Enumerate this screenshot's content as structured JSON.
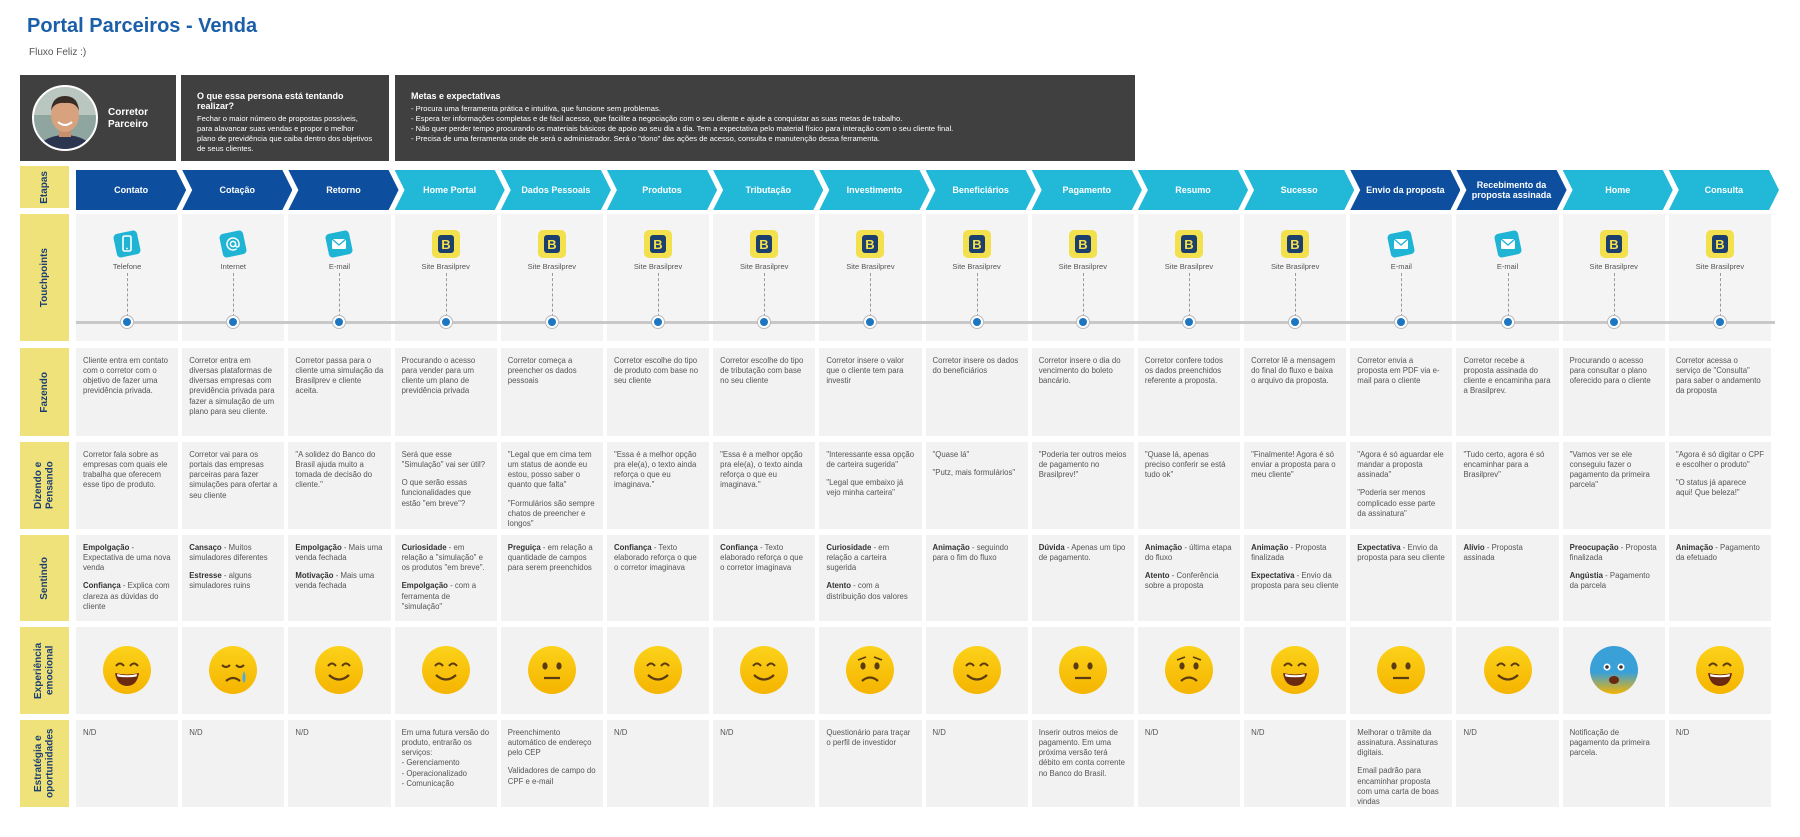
{
  "header": {
    "title": "Portal Parceiros - Venda",
    "subtitle": "Fluxo Feliz :)"
  },
  "persona": {
    "name": "Corretor Parceiro"
  },
  "goal": {
    "title": "O que essa persona está tentando realizar?",
    "text": "Fechar o maior número de propostas possíveis, para alavancar suas vendas e propor o melhor plano de previdência que caiba dentro dos objetivos de seus clientes."
  },
  "expectations": {
    "title": "Metas e expectativas",
    "items": [
      "- Procura uma ferramenta prática e intuitiva, que funcione sem problemas.",
      "- Espera ter informações completas e de fácil acesso, que facilite a negociação com o seu cliente e ajude a conquistar as suas metas de trabalho.",
      "- Não quer perder tempo procurando os materiais básicos de apoio ao seu dia a dia. Tem a expectativa pelo material físico para interação com o seu cliente final.",
      "- Precisa de uma ferramenta onde ele será o administrador. Será o \"dono\" das ações de acesso, consulta e manutenção dessa ferramenta."
    ]
  },
  "row_labels": [
    "Etapas",
    "Touchpoints",
    "Fazendo",
    "Dizendo e Pensando",
    "Sentindo",
    "Experiência emocional",
    "Estratégia e oportunidades"
  ],
  "journey": [
    {
      "stage": "Contato",
      "color": "#0d4f9e",
      "touchpoint": "Telefone",
      "doing": "Cliente entra em contato com o corretor com o objetivo de fazer uma previdência privada.",
      "saying": [
        "Corretor fala sobre as empresas com quais ele trabalha que oferecem esse tipo de produto."
      ],
      "feeling": [
        {
          "label": "Empolgação",
          "text": "- Expectativa de uma nova venda"
        },
        {
          "label": "Confiança",
          "text": "- Explica com clareza as dúvidas do cliente"
        }
      ],
      "strategy": [
        "N/D"
      ]
    },
    {
      "stage": "Cotação",
      "color": "#0d4f9e",
      "touchpoint": "Internet",
      "doing": "Corretor entra em diversas plataformas de diversas empresas com previdência privada para fazer a simulação de um plano para seu cliente.",
      "saying": [
        "Corretor vai para os portais das empresas parceiras para fazer simulações para ofertar a seu cliente"
      ],
      "feeling": [
        {
          "label": "Cansaço",
          "text": "- Muitos simuladores diferentes"
        },
        {
          "label": "Estresse",
          "text": "- alguns simuladores ruins"
        }
      ],
      "strategy": [
        "N/D"
      ]
    },
    {
      "stage": "Retorno",
      "color": "#0d4f9e",
      "touchpoint": "E-mail",
      "doing": "Corretor passa para o cliente uma simulação da Brasilprev e cliente aceita.",
      "saying": [
        "\"A solidez do Banco do Brasil ajuda muito a tomada de decisão do cliente.\""
      ],
      "feeling": [
        {
          "label": "Empolgação",
          "text": "- Mais uma venda fechada"
        },
        {
          "label": "Motivação",
          "text": "- Mais uma venda fechada"
        }
      ],
      "strategy": [
        "N/D"
      ]
    },
    {
      "stage": "Home Portal",
      "color": "#22b8d8",
      "touchpoint": "Site Brasilprev",
      "doing": "Procurando o acesso para vender para um cliente um plano de previdência privada",
      "saying": [
        "Será que esse \"Simulação\" vai ser útil?",
        "O que serão essas funcionalidades que estão \"em breve\"?"
      ],
      "feeling": [
        {
          "label": "Curiosidade",
          "text": "- em relação a \"simulação\" e os produtos \"em breve\"."
        },
        {
          "label": "Empolgação",
          "text": "- com a ferramenta de \"simulação\""
        }
      ],
      "strategy": [
        "Em uma futura versão do produto, entrarão os serviços:\n- Gerenciamento\n- Operacionalizado\n- Comunicação"
      ]
    },
    {
      "stage": "Dados Pessoais",
      "color": "#22b8d8",
      "touchpoint": "Site Brasilprev",
      "doing": "Corretor começa a preencher os dados pessoais",
      "saying": [
        "\"Legal que em cima tem um status de aonde eu estou, posso saber o quanto que falta\"",
        "\"Formulários são sempre chatos de preencher e longos\""
      ],
      "feeling": [
        {
          "label": "Preguiça",
          "text": "- em relação a quantidade de campos para serem preenchidos"
        }
      ],
      "strategy": [
        "Preenchimento automático de endereço pelo CEP",
        "Validadores de campo do CPF e e-mail"
      ]
    },
    {
      "stage": "Produtos",
      "color": "#22b8d8",
      "touchpoint": "Site Brasilprev",
      "doing": "Corretor escolhe do tipo de produto com base no seu cliente",
      "saying": [
        "\"Essa é a melhor opção pra ele(a), o texto ainda reforça o que eu imaginava.\""
      ],
      "feeling": [
        {
          "label": "Confiança",
          "text": "- Texto elaborado reforça o que o corretor imaginava"
        }
      ],
      "strategy": [
        "N/D"
      ]
    },
    {
      "stage": "Tributação",
      "color": "#22b8d8",
      "touchpoint": "Site Brasilprev",
      "doing": "Corretor escolhe do tipo de tributação com base no seu cliente",
      "saying": [
        "\"Essa é a melhor opção pra ele(a), o texto ainda reforça o que eu imaginava.\""
      ],
      "feeling": [
        {
          "label": "Confiança",
          "text": "- Texto elaborado reforça o que o corretor imaginava"
        }
      ],
      "strategy": [
        "N/D"
      ]
    },
    {
      "stage": "Investimento",
      "color": "#22b8d8",
      "touchpoint": "Site Brasilprev",
      "doing": "Corretor insere o valor que o cliente tem para investir",
      "saying": [
        "\"Interessante essa opção de carteira sugerida\"",
        "\"Legal que embaixo já vejo minha carteira\""
      ],
      "feeling": [
        {
          "label": "Curiosidade",
          "text": "- em relação a carteira sugerida"
        },
        {
          "label": "Atento",
          "text": "- com a distribuição dos valores"
        }
      ],
      "strategy": [
        "Questionário para traçar o perfil de investidor"
      ]
    },
    {
      "stage": "Beneficiários",
      "color": "#22b8d8",
      "touchpoint": "Site Brasilprev",
      "doing": "Corretor insere os dados do beneficiários",
      "saying": [
        "\"Quase lá\"",
        "\"Putz, mais formulários\""
      ],
      "feeling": [
        {
          "label": "Animação",
          "text": "- seguindo para o fim do fluxo"
        }
      ],
      "strategy": [
        "N/D"
      ]
    },
    {
      "stage": "Pagamento",
      "color": "#22b8d8",
      "touchpoint": "Site Brasilprev",
      "doing": "Corretor insere o dia do vencimento do boleto bancário.",
      "saying": [
        "\"Poderia ter outros meios de pagamento no Brasilprev!\""
      ],
      "feeling": [
        {
          "label": "Dúvida",
          "text": "- Apenas um tipo de pagamento."
        }
      ],
      "strategy": [
        "Inserir outros meios de pagamento. Em uma próxima versão terá débito em conta corrente no Banco do Brasil."
      ]
    },
    {
      "stage": "Resumo",
      "color": "#22b8d8",
      "touchpoint": "Site Brasilprev",
      "doing": "Corretor confere todos os dados preenchidos referente a proposta.",
      "saying": [
        "\"Quase lá, apenas preciso conferir se está tudo ok\""
      ],
      "feeling": [
        {
          "label": "Animação",
          "text": "- última etapa do fluxo"
        },
        {
          "label": "Atento",
          "text": "- Conferência sobre a proposta"
        }
      ],
      "strategy": [
        "N/D"
      ]
    },
    {
      "stage": "Sucesso",
      "color": "#22b8d8",
      "touchpoint": "Site Brasilprev",
      "doing": "Corretor lê a mensagem do final do fluxo e baixa o arquivo da proposta.",
      "saying": [
        "\"Finalmente! Agora é só enviar a proposta para o meu cliente\""
      ],
      "feeling": [
        {
          "label": "Animação",
          "text": "- Proposta finalizada"
        },
        {
          "label": "Expectativa",
          "text": "- Envio da proposta para seu cliente"
        }
      ],
      "strategy": [
        "N/D"
      ]
    },
    {
      "stage": "Envio da proposta",
      "color": "#0d4f9e",
      "touchpoint": "E-mail",
      "doing": "Corretor envia a proposta em PDF via e-mail para o cliente",
      "saying": [
        "\"Agora é só aguardar ele mandar a proposta assinada\"",
        "\"Poderia ser menos complicado esse parte da assinatura\""
      ],
      "feeling": [
        {
          "label": "Expectativa",
          "text": "- Envio da proposta para seu cliente"
        }
      ],
      "strategy": [
        "Melhorar o trâmite da assinatura. Assinaturas digitais.",
        "Email padrão para encaminhar proposta com uma carta de boas vindas"
      ]
    },
    {
      "stage": "Recebimento da proposta assinada",
      "color": "#0d4f9e",
      "touchpoint": "E-mail",
      "doing": "Corretor recebe a proposta assinada do cliente e encaminha para a Brasilprev.",
      "saying": [
        "\"Tudo certo, agora é só encaminhar para a Brasilprev\""
      ],
      "feeling": [
        {
          "label": "Alívio",
          "text": "- Proposta assinada"
        }
      ],
      "strategy": [
        "N/D"
      ]
    },
    {
      "stage": "Home",
      "color": "#22b8d8",
      "touchpoint": "Site Brasilprev",
      "doing": "Procurando o acesso para consultar o plano oferecido para o cliente",
      "saying": [
        "\"Vamos ver se ele conseguiu fazer o pagamento da primeira parcela\""
      ],
      "feeling": [
        {
          "label": "Preocupação",
          "text": "- Proposta finalizada"
        },
        {
          "label": "Angústia",
          "text": "- Pagamento da parcela"
        }
      ],
      "strategy": [
        "Notificação de pagamento da primeira parcela."
      ]
    },
    {
      "stage": "Consulta",
      "color": "#22b8d8",
      "touchpoint": "Site Brasilprev",
      "doing": "Corretor acessa o serviço de \"Consulta\" para saber o andamento da proposta",
      "saying": [
        "\"Agora é só digitar o CPF e escolher o produto\"",
        "\"O status já aparece aqui! Que beleza!\""
      ],
      "feeling": [
        {
          "label": "Animação",
          "text": "- Pagamento da efetuado"
        }
      ],
      "strategy": [
        "N/D"
      ]
    }
  ]
}
